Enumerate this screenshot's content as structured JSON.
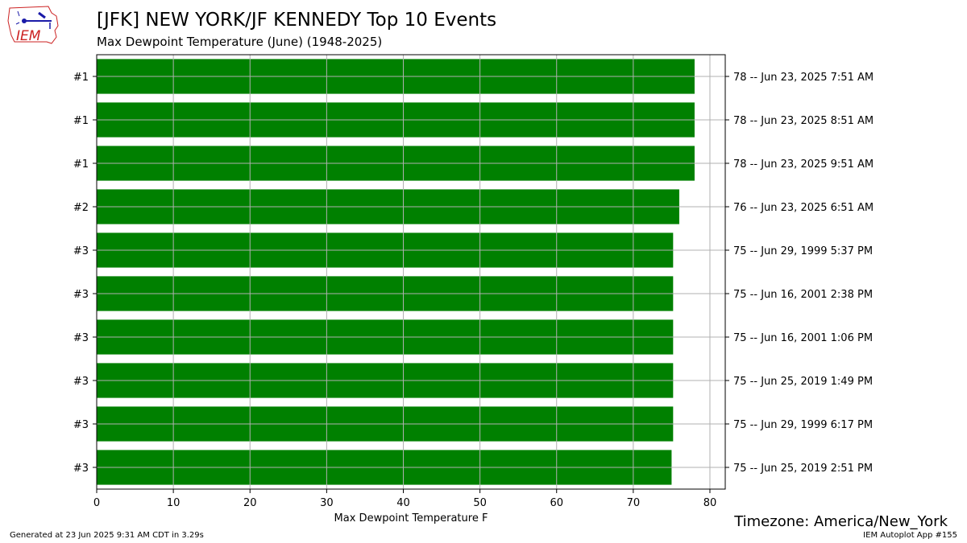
{
  "header": {
    "title": "[JFK] NEW YORK/JF KENNEDY Top 10 Events",
    "subtitle": "Max Dewpoint Temperature  (June) (1948-2025)",
    "logo_text": "IEM"
  },
  "footer": {
    "generated": "Generated at 23 Jun 2025 9:31 AM CDT in 3.29s",
    "app": "IEM Autoplot App #155",
    "timezone": "Timezone: America/New_York"
  },
  "colors": {
    "bar": "#008000",
    "grid": "#b0b0b0",
    "logo": "#cc2222",
    "logo_icon": "#1a1aa8"
  },
  "chart_data": {
    "type": "bar",
    "orientation": "horizontal",
    "xlabel": "Max Dewpoint Temperature F",
    "xlim": [
      0,
      82
    ],
    "xticks": [
      0,
      10,
      20,
      30,
      40,
      50,
      60,
      70,
      80
    ],
    "grid": true,
    "ranks": [
      "#1",
      "#1",
      "#1",
      "#2",
      "#3",
      "#3",
      "#3",
      "#3",
      "#3",
      "#3"
    ],
    "values": [
      78,
      78,
      78,
      76,
      75.2,
      75.2,
      75.2,
      75.2,
      75.2,
      75
    ],
    "labels": [
      "78 -- Jun 23, 2025 7:51 AM",
      "78 -- Jun 23, 2025 8:51 AM",
      "78 -- Jun 23, 2025 9:51 AM",
      "76 -- Jun 23, 2025 6:51 AM",
      "75 -- Jun 29, 1999 5:37 PM",
      "75 -- Jun 16, 2001 2:38 PM",
      "75 -- Jun 16, 2001 1:06 PM",
      "75 -- Jun 25, 2019 1:49 PM",
      "75 -- Jun 29, 1999 6:17 PM",
      "75 -- Jun 25, 2019 2:51 PM"
    ]
  }
}
